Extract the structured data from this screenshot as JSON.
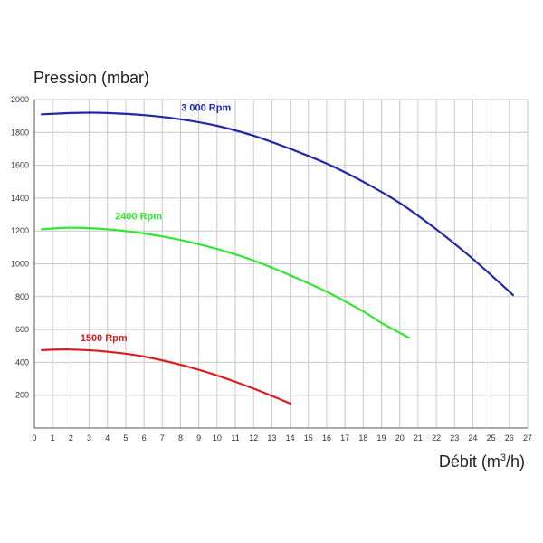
{
  "chart_data": {
    "type": "line",
    "ylabel": "Pression (mbar)",
    "xlabel_base": "Débit (m",
    "xlabel_sup": "3",
    "xlabel_tail": "/h)",
    "xlim": [
      0,
      27
    ],
    "ylim": [
      0,
      2000
    ],
    "xticks": [
      0,
      1,
      2,
      3,
      4,
      5,
      6,
      7,
      8,
      9,
      10,
      11,
      12,
      13,
      14,
      15,
      16,
      17,
      18,
      19,
      20,
      21,
      22,
      23,
      24,
      25,
      26,
      27
    ],
    "yticks": [
      200,
      400,
      600,
      800,
      1000,
      1200,
      1400,
      1600,
      1800,
      2000
    ],
    "grid": true,
    "series": [
      {
        "name": "3 000 Rpm",
        "color": "#1f2aa8",
        "x": [
          0.4,
          2,
          3,
          4,
          6,
          8,
          10,
          12,
          14,
          16,
          18,
          20,
          22,
          24,
          26.2
        ],
        "y": [
          1910,
          1918,
          1920,
          1918,
          1905,
          1880,
          1840,
          1780,
          1700,
          1610,
          1500,
          1370,
          1210,
          1030,
          810
        ]
      },
      {
        "name": "2400 Rpm",
        "color": "#33e633",
        "x": [
          0.4,
          2,
          4,
          6,
          8,
          10,
          12,
          14,
          16,
          18,
          19,
          20.5
        ],
        "y": [
          1210,
          1220,
          1210,
          1185,
          1145,
          1090,
          1020,
          930,
          830,
          710,
          640,
          550
        ]
      },
      {
        "name": "1500 Rpm",
        "color": "#dd1d1d",
        "x": [
          0.4,
          2,
          4,
          6,
          8,
          10,
          12,
          14
        ],
        "y": [
          475,
          478,
          465,
          435,
          385,
          320,
          240,
          150
        ]
      }
    ]
  }
}
